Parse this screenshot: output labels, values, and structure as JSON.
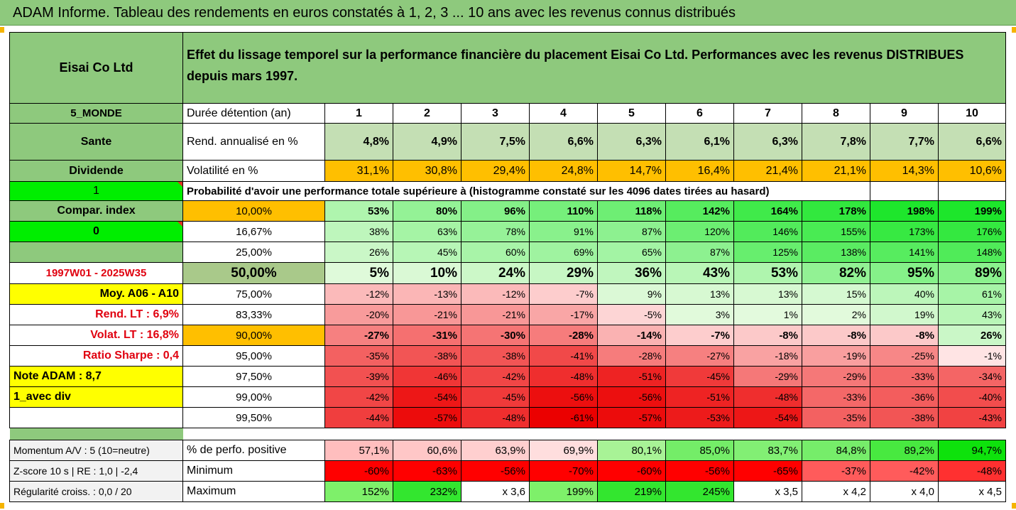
{
  "title": "ADAM Informe. Tableau des rendements en euros constatés à 1, 2, 3 ... 10 ans avec les revenus connus distribués",
  "company": "Eisai Co Ltd",
  "description": "Effet du lissage temporel sur la performance financière du placement Eisai Co Ltd. Performances avec les revenus DISTRIBUES depuis mars 1997.",
  "left_panel": {
    "region": "5_MONDE",
    "sector": "Sante",
    "dividend_label": "Dividende",
    "dividend_flag": "1",
    "compar_label": "Compar. index",
    "compar_flag": "0",
    "period": "1997W01 - 2025W35",
    "moy": "Moy. A06 - A10",
    "rend_lt": "Rend. LT :   6,9%",
    "volat_lt": "Volat. LT :   16,8%",
    "sharpe": "Ratio Sharpe :   0,4",
    "note": "Note ADAM : 8,7",
    "avec_div": "1_avec div",
    "momentum": "Momentum A/V : 5 (10=neutre)",
    "zscore": "Z-score 10 s  |  RE : 1,0  |  -2,4",
    "regularite": "Régularité croiss. : 0,0 / 20"
  },
  "duration_label": "Durée détention (an)",
  "years": [
    "1",
    "2",
    "3",
    "4",
    "5",
    "6",
    "7",
    "8",
    "9",
    "10"
  ],
  "rend_label": "Rend. annualisé en %",
  "rend": [
    "4,8%",
    "4,9%",
    "7,5%",
    "6,6%",
    "6,3%",
    "6,1%",
    "6,3%",
    "7,8%",
    "7,7%",
    "6,6%"
  ],
  "vol_label": "Volatilité en %",
  "vol": [
    "31,1%",
    "30,8%",
    "29,4%",
    "24,8%",
    "14,7%",
    "16,4%",
    "21,4%",
    "21,1%",
    "14,3%",
    "10,6%"
  ],
  "prob_label": "Probabilité d'avoir une performance totale supérieure à (histogramme constaté sur les 4096 dates tirées au hasard)",
  "percentiles": [
    {
      "p": "10,00%",
      "vals": [
        "53%",
        "80%",
        "96%",
        "110%",
        "118%",
        "142%",
        "164%",
        "178%",
        "198%",
        "199%"
      ]
    },
    {
      "p": "16,67%",
      "vals": [
        "38%",
        "63%",
        "78%",
        "91%",
        "87%",
        "120%",
        "146%",
        "155%",
        "173%",
        "176%"
      ]
    },
    {
      "p": "25,00%",
      "vals": [
        "26%",
        "45%",
        "60%",
        "69%",
        "65%",
        "87%",
        "125%",
        "138%",
        "141%",
        "148%"
      ]
    },
    {
      "p": "50,00%",
      "vals": [
        "5%",
        "10%",
        "24%",
        "29%",
        "36%",
        "43%",
        "53%",
        "82%",
        "95%",
        "89%"
      ]
    },
    {
      "p": "75,00%",
      "vals": [
        "-12%",
        "-13%",
        "-12%",
        "-7%",
        "9%",
        "13%",
        "13%",
        "15%",
        "40%",
        "61%"
      ]
    },
    {
      "p": "83,33%",
      "vals": [
        "-20%",
        "-21%",
        "-21%",
        "-17%",
        "-5%",
        "3%",
        "1%",
        "2%",
        "19%",
        "43%"
      ]
    },
    {
      "p": "90,00%",
      "vals": [
        "-27%",
        "-31%",
        "-30%",
        "-28%",
        "-14%",
        "-7%",
        "-8%",
        "-8%",
        "-8%",
        "26%"
      ]
    },
    {
      "p": "95,00%",
      "vals": [
        "-35%",
        "-38%",
        "-38%",
        "-41%",
        "-28%",
        "-27%",
        "-18%",
        "-19%",
        "-25%",
        "-1%"
      ]
    },
    {
      "p": "97,50%",
      "vals": [
        "-39%",
        "-46%",
        "-42%",
        "-48%",
        "-51%",
        "-45%",
        "-29%",
        "-29%",
        "-33%",
        "-34%"
      ]
    },
    {
      "p": "99,00%",
      "vals": [
        "-42%",
        "-54%",
        "-45%",
        "-56%",
        "-56%",
        "-51%",
        "-48%",
        "-33%",
        "-36%",
        "-40%"
      ]
    },
    {
      "p": "99,50%",
      "vals": [
        "-44%",
        "-57%",
        "-48%",
        "-61%",
        "-57%",
        "-53%",
        "-54%",
        "-35%",
        "-38%",
        "-43%"
      ]
    }
  ],
  "pos_label": "% de perfo. positive",
  "pos": [
    "57,1%",
    "60,6%",
    "63,9%",
    "69,9%",
    "80,1%",
    "85,0%",
    "83,7%",
    "84,8%",
    "89,2%",
    "94,7%"
  ],
  "min_label": "Minimum",
  "min": [
    "-60%",
    "-63%",
    "-56%",
    "-70%",
    "-60%",
    "-56%",
    "-65%",
    "-37%",
    "-42%",
    "-48%"
  ],
  "max_label": "Maximum",
  "max": [
    "152%",
    "232%",
    "x 3,6",
    "199%",
    "219%",
    "245%",
    "x 3,5",
    "x 4,2",
    "x 4,0",
    "x 4,5"
  ],
  "colors": {
    "header_green": "#8ec97d",
    "rend_green": "#c4dfb4",
    "vol_orange": "#ffbf00",
    "bright_green": "#00ee00",
    "yellow": "#ffff00",
    "olive": "#a9c98a"
  }
}
